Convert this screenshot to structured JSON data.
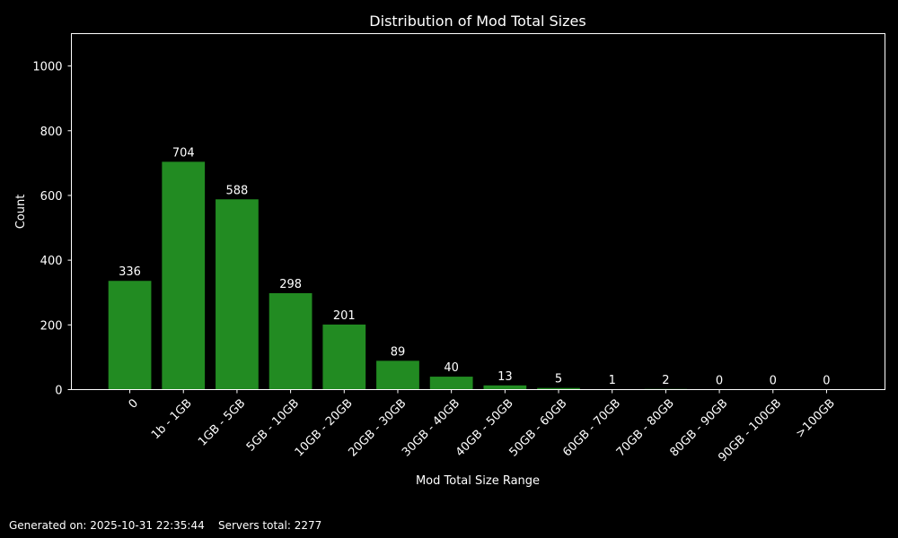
{
  "chart_data": {
    "type": "bar",
    "title": "Distribution of Mod Total Sizes",
    "xlabel": "Mod Total Size Range",
    "ylabel": "Count",
    "categories": [
      "0",
      "1b - 1GB",
      "1GB - 5GB",
      "5GB - 10GB",
      "10GB - 20GB",
      "20GB - 30GB",
      "30GB - 40GB",
      "40GB - 50GB",
      "50GB - 60GB",
      "60GB - 70GB",
      "70GB - 80GB",
      "80GB - 90GB",
      "90GB - 100GB",
      ">100GB"
    ],
    "values": [
      336,
      704,
      588,
      298,
      201,
      89,
      40,
      13,
      5,
      1,
      2,
      0,
      0,
      0
    ],
    "ylim": [
      0,
      1100
    ],
    "yticks": [
      0,
      200,
      400,
      600,
      800,
      1000
    ],
    "grid": false,
    "bar_color": "#228b22",
    "background": "#000000",
    "data_labels": true
  },
  "footer": {
    "generated": "Generated on: 2025-10-31 22:35:44",
    "servers": "Servers total: 2277"
  }
}
